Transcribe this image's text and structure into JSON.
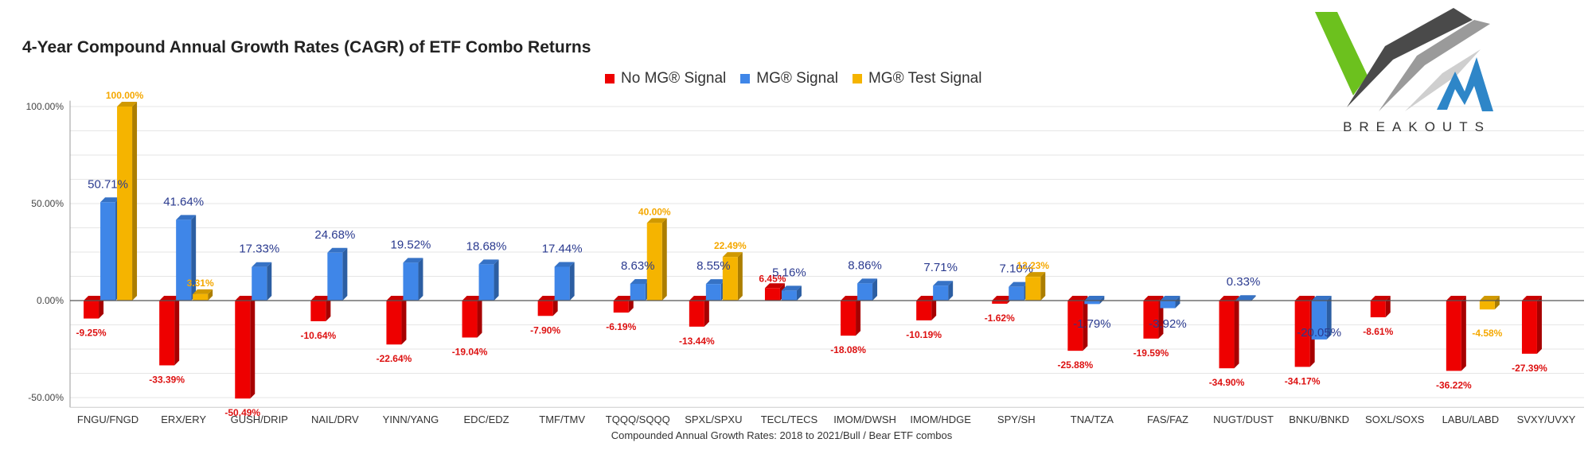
{
  "title": "4-Year Compound Annual Growth Rates (CAGR) of ETF Combo Returns",
  "logo": {
    "text": "BREAKOUTS"
  },
  "chart_data": {
    "type": "bar",
    "title": "4-Year Compound Annual Growth Rates (CAGR) of ETF Combo Returns",
    "xlabel": "Compounded Annual Growth Rates: 2018 to 2021/Bull / Bear ETF combos",
    "ylabel": "",
    "ylim": [
      -55,
      103
    ],
    "yticks": [
      100,
      50,
      0,
      -50
    ],
    "ytick_labels": [
      "100.00%",
      "50.00%",
      "0.00%",
      "-50.00%"
    ],
    "grid": true,
    "legend_position": "top",
    "categories": [
      "FNGU/FNGD",
      "ERX/ERY",
      "GUSH/DRIP",
      "NAIL/DRV",
      "YINN/YANG",
      "EDC/EDZ",
      "TMF/TMV",
      "TQQQ/SQQQ",
      "SPXL/SPXU",
      "TECL/TECS",
      "IMOM/DWSH",
      "IMOM/HDGE",
      "SPY/SH",
      "TNA/TZA",
      "FAS/FAZ",
      "NUGT/DUST",
      "BNKU/BNKD",
      "SOXL/SOXS",
      "LABU/LABD",
      "SVXY/UVXY"
    ],
    "series": [
      {
        "name": "No MG® Signal",
        "color": "#ee0000",
        "label_color": "#dd1111",
        "values": [
          -9.25,
          -33.39,
          -50.49,
          -10.64,
          -22.64,
          -19.04,
          -7.9,
          -6.19,
          -13.44,
          6.45,
          -18.08,
          -10.19,
          -1.62,
          -25.88,
          -19.59,
          -34.9,
          -34.17,
          -8.61,
          -36.22,
          -27.39
        ],
        "labels": [
          "-9.25%",
          "-33.39%",
          "-50.49%",
          "-10.64%",
          "-22.64%",
          "-19.04%",
          "-7.90%",
          "-6.19%",
          "-13.44%",
          "6.45%",
          "-18.08%",
          "-10.19%",
          "-1.62%",
          "-25.88%",
          "-19.59%",
          "-34.90%",
          "-34.17%",
          "-8.61%",
          "-36.22%",
          "-27.39%"
        ]
      },
      {
        "name": "MG® Signal",
        "color": "#3f86e8",
        "label_color": "#2a3a8f",
        "values": [
          50.71,
          41.64,
          17.33,
          24.68,
          19.52,
          18.68,
          17.44,
          8.63,
          8.55,
          5.16,
          8.86,
          7.71,
          7.1,
          -1.79,
          -3.92,
          0.33,
          -20.05,
          null,
          null,
          null
        ],
        "labels": [
          "50.71%",
          "41.64%",
          "17.33%",
          "24.68%",
          "19.52%",
          "18.68%",
          "17.44%",
          "8.63%",
          "8.55%",
          "5.16%",
          "8.86%",
          "7.71%",
          "7.10%",
          "-1.79%",
          "-3.92%",
          "0.33%",
          "-20.05%",
          null,
          null,
          null
        ]
      },
      {
        "name": "MG® Test Signal",
        "color": "#f5b400",
        "label_color": "#f5a800",
        "values": [
          100,
          3.31,
          null,
          null,
          null,
          null,
          null,
          40,
          22.49,
          null,
          null,
          null,
          12.23,
          null,
          null,
          null,
          null,
          null,
          -4.58,
          null
        ],
        "labels": [
          "100.00%",
          "3.31%",
          null,
          null,
          null,
          null,
          null,
          "40.00%",
          "22.49%",
          null,
          null,
          null,
          "12.23%",
          null,
          null,
          null,
          null,
          null,
          "-4.58%",
          null
        ]
      }
    ]
  }
}
